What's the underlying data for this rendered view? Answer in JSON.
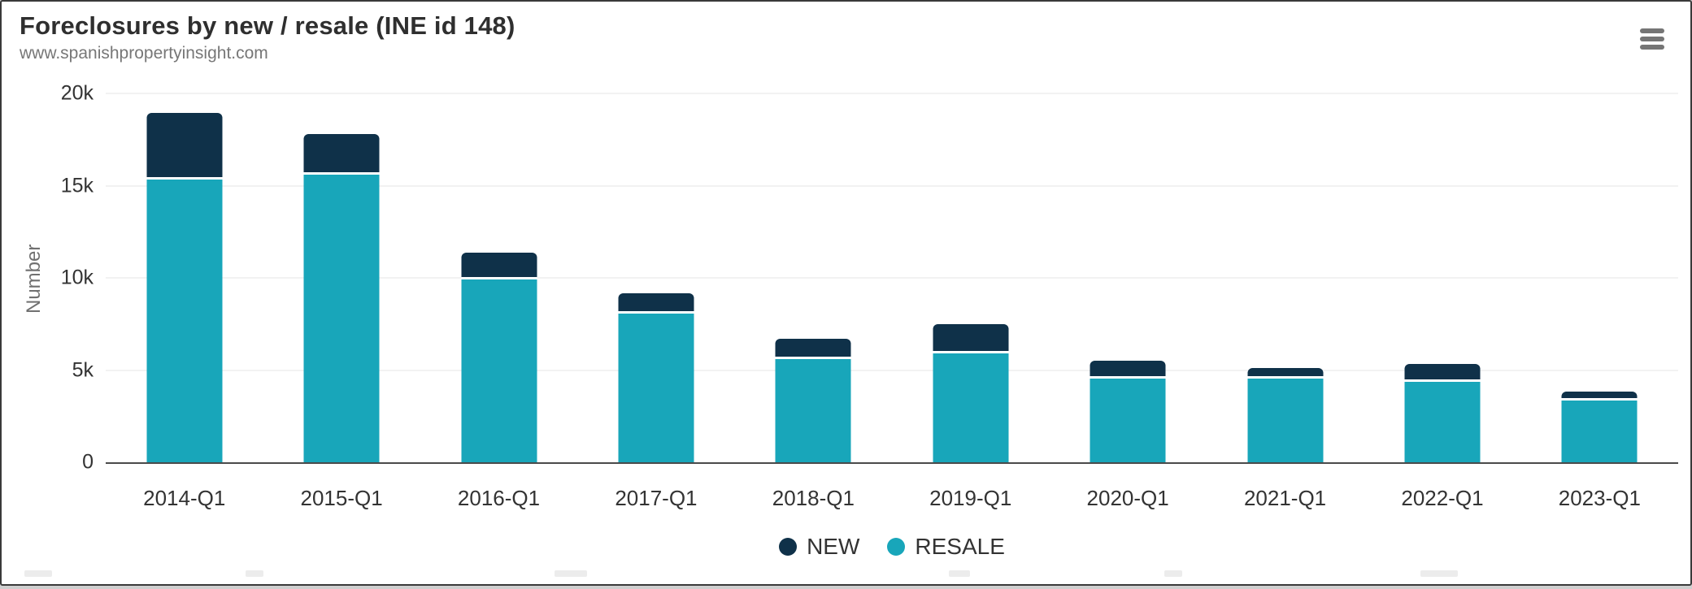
{
  "header": {
    "title": "Foreclosures by new / resale (INE id 148)",
    "subtitle": "www.spanishpropertyinsight.com"
  },
  "toolbar": {
    "context_menu_icon": "hamburger-icon"
  },
  "chart_data": {
    "type": "bar",
    "stacked": true,
    "title": "Foreclosures by new / resale (INE id 148)",
    "subtitle": "www.spanishpropertyinsight.com",
    "xlabel": "",
    "ylabel": "Number",
    "ylim": [
      0,
      20000
    ],
    "grid": true,
    "legend_position": "bottom",
    "categories": [
      "2014-Q1",
      "2015-Q1",
      "2016-Q1",
      "2017-Q1",
      "2018-Q1",
      "2019-Q1",
      "2020-Q1",
      "2021-Q1",
      "2022-Q1",
      "2023-Q1"
    ],
    "series": [
      {
        "name": "NEW",
        "color": "#0f3149",
        "values": [
          3600,
          2200,
          1450,
          1100,
          1100,
          1600,
          950,
          550,
          1000,
          500
        ]
      },
      {
        "name": "RESALE",
        "color": "#18a6ba",
        "values": [
          15350,
          15600,
          9900,
          8050,
          5600,
          5900,
          4550,
          4550,
          4350,
          3350
        ]
      }
    ],
    "totals": [
      18950,
      17800,
      11350,
      9150,
      6700,
      7500,
      5500,
      5100,
      5350,
      3850
    ],
    "yticks": [
      {
        "value": 0,
        "label": "0"
      },
      {
        "value": 5000,
        "label": "5k"
      },
      {
        "value": 10000,
        "label": "10k"
      },
      {
        "value": 15000,
        "label": "15k"
      },
      {
        "value": 20000,
        "label": "20k"
      }
    ]
  },
  "legend": {
    "items": [
      {
        "label": "NEW",
        "color": "#0f3149"
      },
      {
        "label": "RESALE",
        "color": "#18a6ba"
      }
    ]
  },
  "colors": {
    "new_series": "#0f3149",
    "resale_series": "#18a6ba",
    "grid": "#f2f2f2",
    "axis": "#4a4a4a",
    "title_text": "#2f2f2f",
    "subtitle_text": "#777777",
    "tick_text": "#333333",
    "background": "#ffffff"
  }
}
